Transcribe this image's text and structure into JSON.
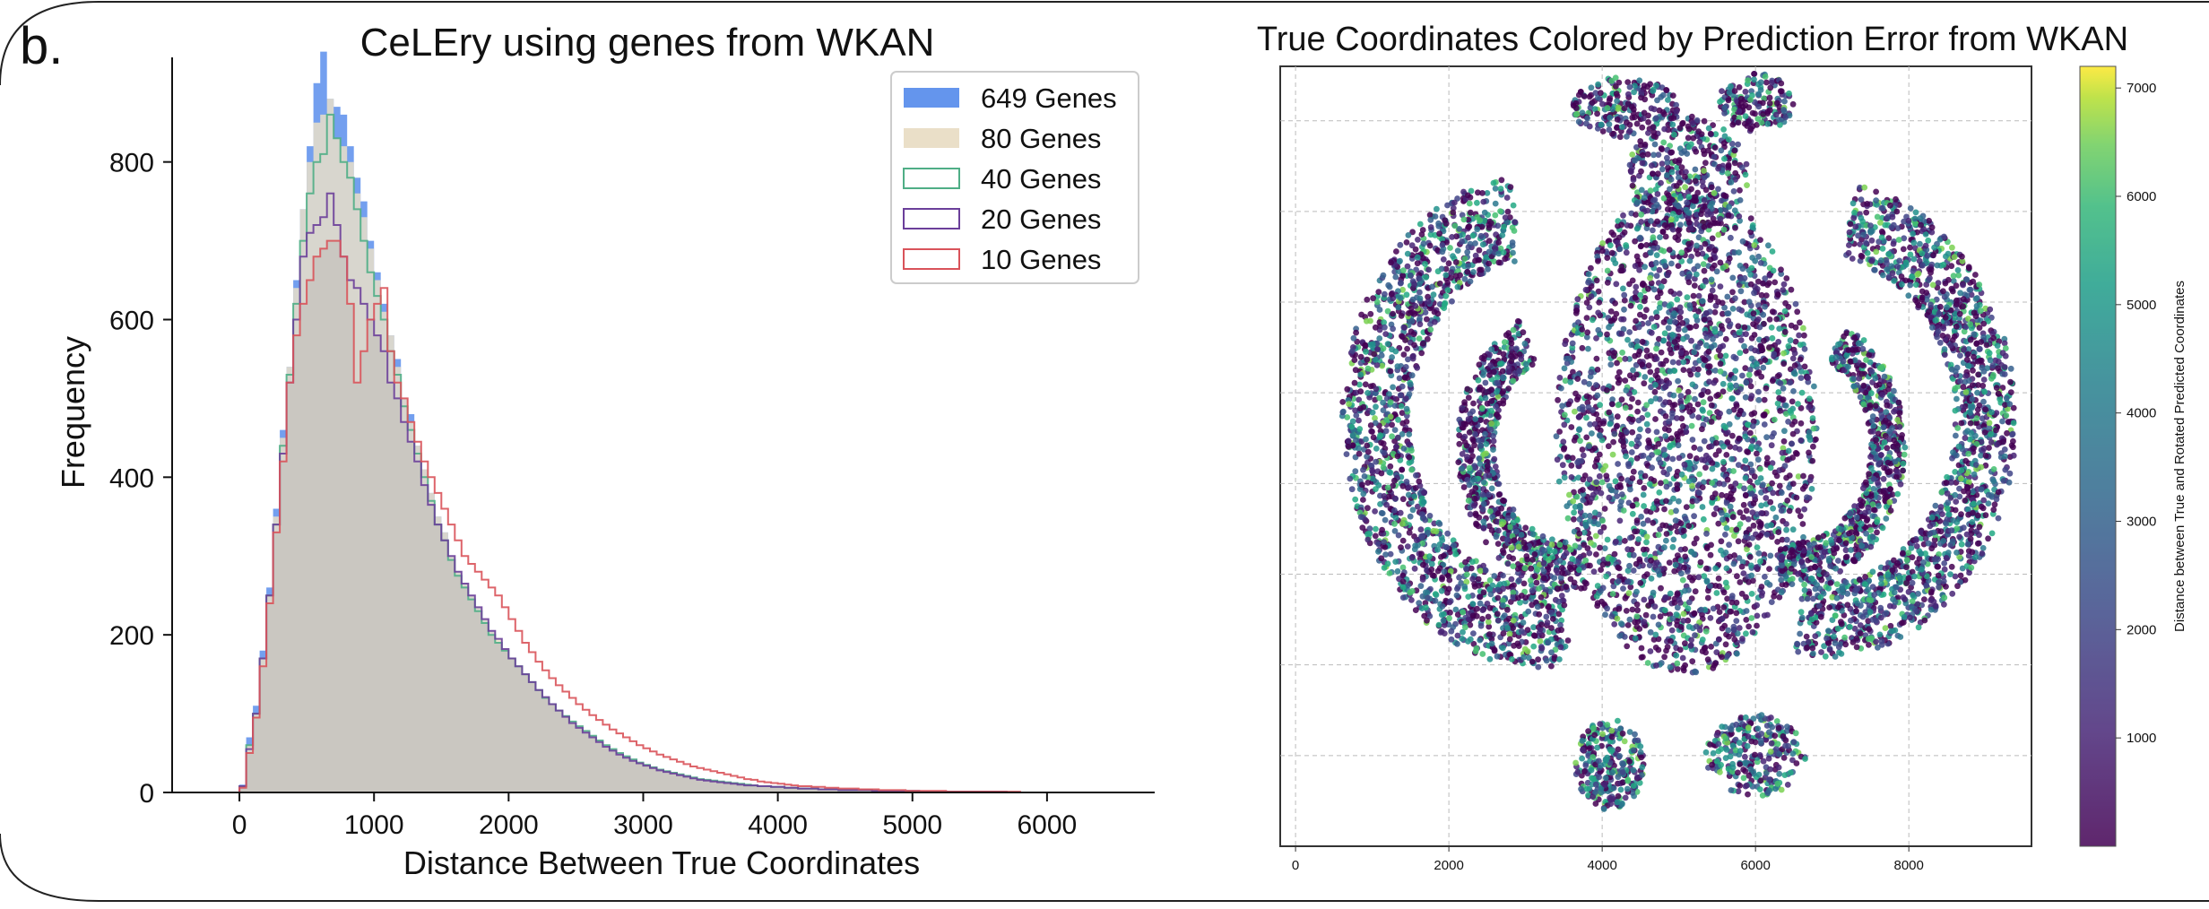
{
  "panel_label": "b.",
  "chart_data": [
    {
      "type": "histogram",
      "title": "CeLEry using genes from WKAN",
      "xlabel": "Distance Between True Coordinates",
      "ylabel": "Frequency",
      "xlim": [
        -500,
        6800
      ],
      "ylim": [
        0,
        960
      ],
      "xticks": [
        0,
        1000,
        2000,
        3000,
        4000,
        5000,
        6000
      ],
      "yticks": [
        0,
        200,
        400,
        600,
        800
      ],
      "legend_position": "top-right",
      "bin_width": 50,
      "bins_start": 0,
      "series": [
        {
          "name": "649 Genes",
          "style": "filled",
          "color": "#6495ED",
          "values": [
            10,
            70,
            110,
            180,
            260,
            360,
            460,
            540,
            650,
            740,
            820,
            900,
            940,
            880,
            870,
            860,
            820,
            780,
            750,
            700,
            660,
            620,
            580,
            550,
            500,
            480,
            440,
            410,
            380,
            350,
            330,
            300,
            280,
            265,
            250,
            235,
            220,
            205,
            190,
            180,
            170,
            160,
            150,
            140,
            130,
            120,
            112,
            104,
            96,
            88,
            82,
            76,
            70,
            64,
            58,
            53,
            48,
            44,
            40,
            37,
            34,
            31,
            28,
            26,
            24,
            22,
            20,
            18,
            16,
            15,
            14,
            13,
            12,
            11,
            10,
            9,
            9,
            8,
            8,
            7,
            7,
            6,
            6,
            5,
            5,
            5,
            4,
            4,
            4,
            3,
            3,
            3,
            3,
            3,
            2,
            2,
            2,
            2,
            2,
            2,
            2,
            1,
            1,
            1,
            1,
            1,
            1,
            1,
            1,
            1,
            1,
            1,
            1,
            1,
            0,
            0,
            0,
            0,
            0,
            0,
            0,
            0
          ]
        },
        {
          "name": "80 Genes",
          "style": "filled",
          "color": "#EADFC8",
          "values": [
            8,
            60,
            100,
            170,
            250,
            350,
            450,
            540,
            640,
            740,
            800,
            850,
            860,
            880,
            830,
            820,
            800,
            760,
            730,
            690,
            650,
            610,
            580,
            540,
            500,
            470,
            440,
            410,
            380,
            350,
            330,
            300,
            280,
            265,
            250,
            235,
            220,
            205,
            195,
            182,
            170,
            160,
            150,
            140,
            130,
            121,
            112,
            104,
            96,
            88,
            82,
            76,
            70,
            64,
            58,
            53,
            48,
            44,
            40,
            37,
            34,
            31,
            28,
            26,
            24,
            22,
            20,
            18,
            16,
            15,
            14,
            13,
            12,
            11,
            10,
            9,
            9,
            8,
            8,
            7,
            7,
            6,
            6,
            5,
            5,
            5,
            4,
            4,
            4,
            3,
            3,
            3,
            3,
            3,
            2,
            2,
            2,
            2,
            2,
            2,
            2,
            1,
            1,
            1,
            1,
            1,
            1,
            1,
            1,
            1,
            1,
            1,
            1,
            1,
            0,
            0,
            0,
            0,
            0,
            0,
            0,
            0
          ]
        },
        {
          "name": "40 Genes",
          "style": "step",
          "color": "#4FAE86",
          "values": [
            8,
            60,
            100,
            170,
            250,
            340,
            440,
            530,
            620,
            700,
            760,
            800,
            810,
            860,
            830,
            800,
            780,
            740,
            700,
            660,
            630,
            600,
            560,
            530,
            490,
            460,
            430,
            400,
            370,
            340,
            320,
            295,
            275,
            260,
            245,
            230,
            215,
            200,
            190,
            180,
            170,
            160,
            150,
            140,
            130,
            120,
            112,
            104,
            97,
            90,
            84,
            78,
            72,
            66,
            60,
            55,
            50,
            46,
            42,
            38,
            35,
            32,
            29,
            27,
            25,
            23,
            21,
            19,
            17,
            16,
            15,
            14,
            13,
            12,
            11,
            10,
            9,
            8,
            8,
            7,
            7,
            6,
            6,
            5,
            5,
            5,
            4,
            4,
            4,
            3,
            3,
            3,
            3,
            3,
            2,
            2,
            2,
            2,
            2,
            2,
            2,
            1,
            1,
            1,
            1,
            1,
            1,
            1,
            1,
            1,
            1,
            1,
            1,
            1,
            0,
            0,
            0,
            0,
            0,
            0,
            0,
            0
          ]
        },
        {
          "name": "20 Genes",
          "style": "step",
          "color": "#6B3F9A",
          "values": [
            8,
            55,
            100,
            170,
            250,
            340,
            430,
            520,
            600,
            680,
            710,
            720,
            730,
            760,
            720,
            680,
            650,
            640,
            620,
            600,
            580,
            560,
            520,
            500,
            470,
            445,
            420,
            390,
            365,
            340,
            320,
            300,
            280,
            265,
            250,
            235,
            220,
            205,
            195,
            182,
            170,
            160,
            150,
            140,
            130,
            121,
            112,
            104,
            96,
            88,
            82,
            76,
            70,
            64,
            58,
            53,
            48,
            44,
            40,
            37,
            34,
            31,
            28,
            26,
            24,
            22,
            20,
            18,
            16,
            15,
            14,
            13,
            12,
            11,
            10,
            9,
            9,
            8,
            8,
            7,
            7,
            6,
            6,
            5,
            5,
            5,
            4,
            4,
            4,
            3,
            3,
            3,
            3,
            3,
            2,
            2,
            2,
            2,
            2,
            2,
            2,
            1,
            1,
            1,
            1,
            1,
            1,
            1,
            1,
            1,
            1,
            1,
            1,
            1,
            0,
            0,
            0,
            0,
            0,
            0,
            0,
            0
          ]
        },
        {
          "name": "10 Genes",
          "style": "step",
          "color": "#D9535A",
          "values": [
            6,
            50,
            95,
            160,
            240,
            330,
            420,
            520,
            580,
            620,
            650,
            680,
            690,
            700,
            700,
            680,
            620,
            520,
            560,
            600,
            620,
            640,
            560,
            520,
            500,
            470,
            445,
            420,
            400,
            380,
            360,
            340,
            320,
            300,
            290,
            280,
            270,
            260,
            250,
            235,
            220,
            205,
            190,
            178,
            166,
            155,
            145,
            136,
            128,
            120,
            112,
            105,
            98,
            92,
            86,
            80,
            75,
            70,
            65,
            60,
            56,
            52,
            48,
            45,
            42,
            39,
            36,
            33,
            31,
            29,
            27,
            25,
            23,
            21,
            19,
            17,
            16,
            14,
            13,
            12,
            11,
            10,
            9,
            8,
            8,
            7,
            7,
            6,
            6,
            5,
            5,
            5,
            4,
            4,
            4,
            3,
            3,
            3,
            3,
            2,
            2,
            2,
            2,
            2,
            2,
            1,
            1,
            1,
            1,
            1,
            1,
            1,
            1,
            1,
            1,
            1,
            0,
            0,
            0,
            0,
            0,
            0
          ]
        }
      ]
    },
    {
      "type": "scatter",
      "title": "True Coordinates Colored by Prediction Error from WKAN",
      "xticks": [
        0,
        2000,
        4000,
        6000,
        8000
      ],
      "xlim": [
        -200,
        9600
      ],
      "ylim": [
        0,
        8600
      ],
      "grid": true,
      "colormap": "viridis",
      "colorbar_label": "Distance between True and Rotated Predicted Coordinates",
      "colorbar_ticks": [
        1000,
        2000,
        3000,
        4000,
        5000,
        6000,
        7000
      ],
      "colorbar_range": [
        0,
        7200
      ],
      "point_count_approx": 9000,
      "shape_description": "spatial tissue section of true cell coordinates"
    }
  ]
}
